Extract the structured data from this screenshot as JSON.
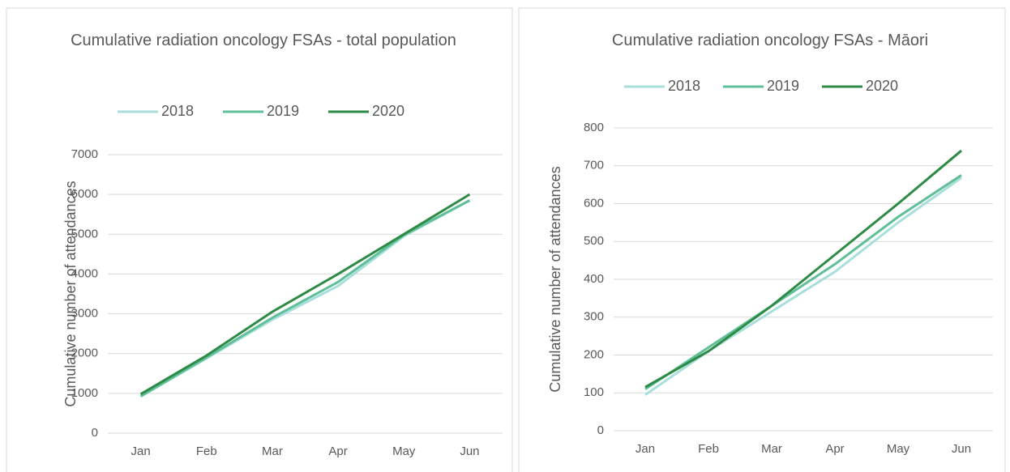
{
  "chart_data": [
    {
      "type": "line",
      "title": "Cumulative radiation oncology FSAs - total population",
      "y_label": "Cumulative number of attendances",
      "categories": [
        "Jan",
        "Feb",
        "Mar",
        "Apr",
        "May",
        "Jun"
      ],
      "series": [
        {
          "name": "2018",
          "color": "#a9dfdb",
          "values": [
            920,
            1880,
            2850,
            3700,
            4950,
            5850
          ]
        },
        {
          "name": "2019",
          "color": "#5fbf98",
          "values": [
            930,
            1900,
            2900,
            3800,
            4980,
            5850
          ]
        },
        {
          "name": "2020",
          "color": "#2e8b45",
          "values": [
            980,
            1950,
            3050,
            4000,
            5000,
            6000
          ]
        }
      ],
      "ylim": [
        0,
        7000
      ],
      "yticks": [
        0,
        1000,
        2000,
        3000,
        4000,
        5000,
        6000,
        7000
      ],
      "grid": true,
      "legend": "top"
    },
    {
      "type": "line",
      "title": "Cumulative radiation oncology FSAs - Māori",
      "y_label": "Cumulative number of attendances",
      "categories": [
        "Jan",
        "Feb",
        "Mar",
        "Apr",
        "May",
        "Jun"
      ],
      "series": [
        {
          "name": "2018",
          "color": "#a9dfdb",
          "values": [
            95,
            210,
            315,
            420,
            550,
            668
          ]
        },
        {
          "name": "2019",
          "color": "#5fbf98",
          "values": [
            110,
            220,
            330,
            440,
            565,
            675
          ]
        },
        {
          "name": "2020",
          "color": "#2e8b45",
          "values": [
            115,
            210,
            330,
            465,
            600,
            740
          ]
        }
      ],
      "ylim": [
        0,
        800
      ],
      "yticks": [
        0,
        100,
        200,
        300,
        400,
        500,
        600,
        700,
        800
      ],
      "grid": true,
      "legend": "top"
    }
  ]
}
